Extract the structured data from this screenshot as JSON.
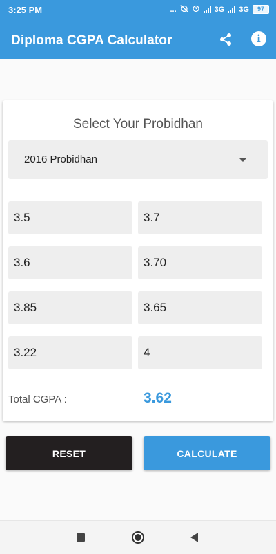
{
  "status_bar": {
    "time": "3:25 PM",
    "indicators": "...",
    "network_1": "3G",
    "network_2": "3G",
    "battery": "97"
  },
  "app_bar": {
    "title": "Diploma CGPA Calculator",
    "actions": [
      "share-icon",
      "info-icon"
    ],
    "info_glyph": "i"
  },
  "form": {
    "heading": "Select Your Probidhan",
    "probidhan_selected": "2016 Probidhan",
    "gpa_fields": [
      "3.5",
      "3.7",
      "3.6",
      "3.70",
      "3.85",
      "3.65",
      "3.22",
      "4"
    ]
  },
  "result": {
    "label": "Total CGPA :",
    "value": "3.62"
  },
  "buttons": {
    "reset": "RESET",
    "calculate": "CALCULATE"
  },
  "colors": {
    "accent": "#3a99dd",
    "reset_button": "#231f20"
  }
}
